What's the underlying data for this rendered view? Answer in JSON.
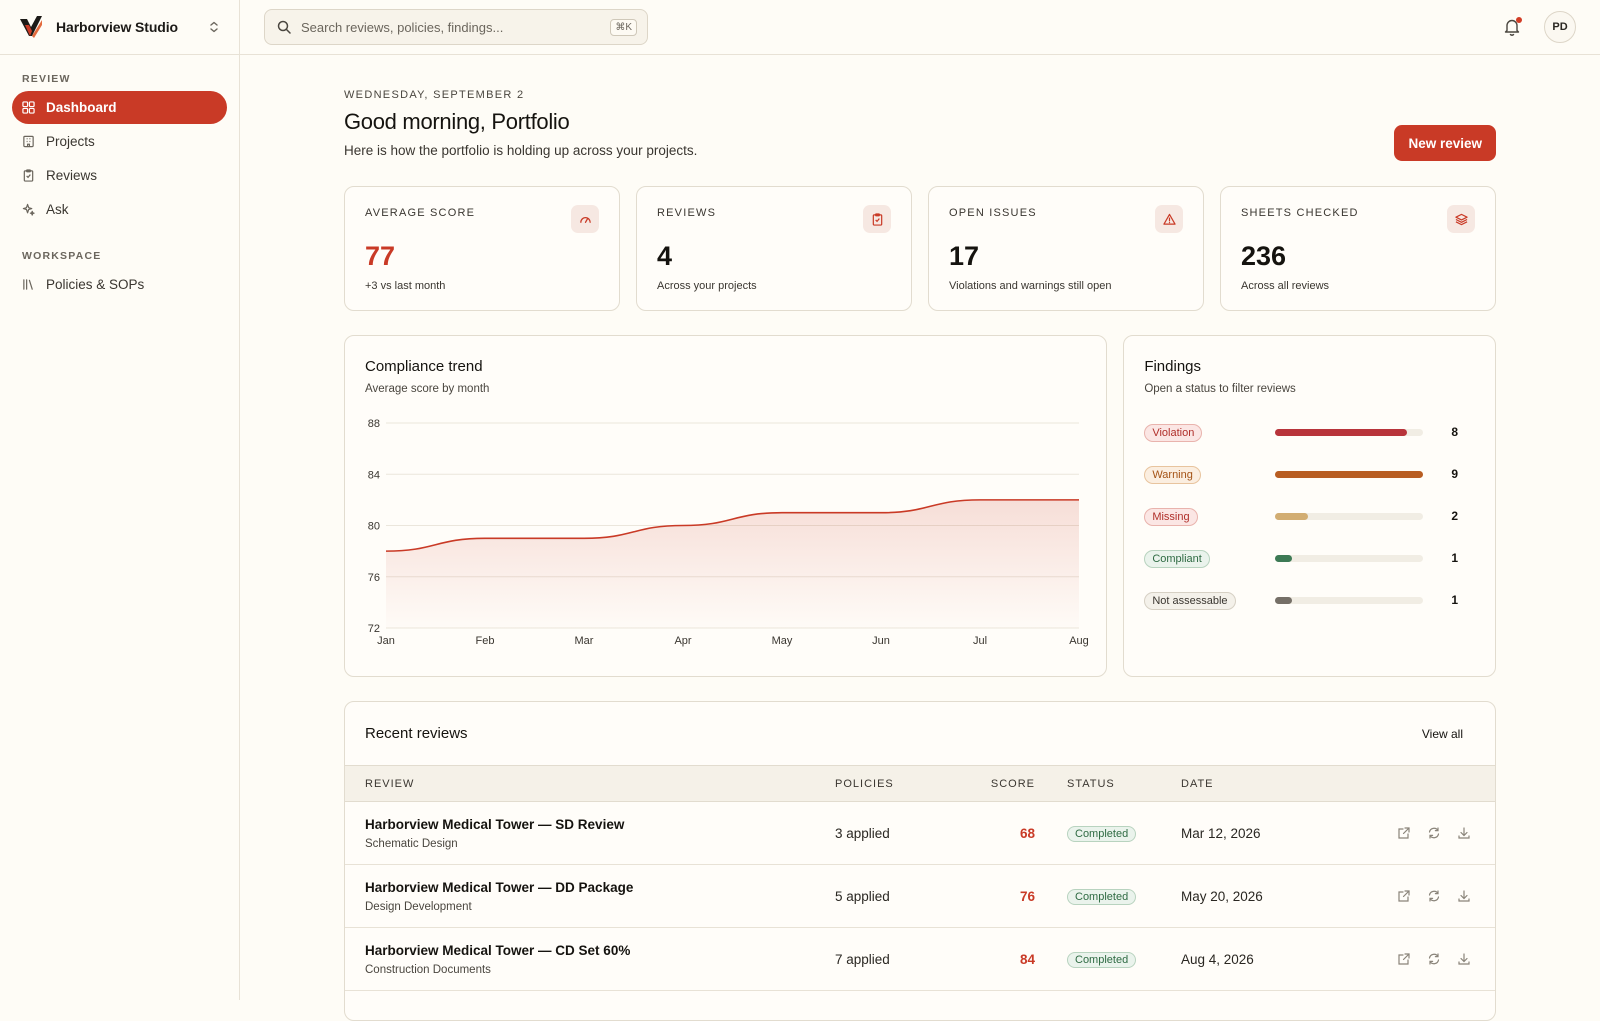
{
  "brand": {
    "name": "Harborview Studio"
  },
  "sidebar": {
    "sections": [
      {
        "label": "REVIEW"
      },
      {
        "label": "WORKSPACE"
      }
    ],
    "items": [
      {
        "label": "Dashboard",
        "icon": "grid-icon"
      },
      {
        "label": "Projects",
        "icon": "building-icon"
      },
      {
        "label": "Reviews",
        "icon": "clipboard-icon"
      },
      {
        "label": "Ask",
        "icon": "sparkle-icon"
      },
      {
        "label": "Policies & SOPs",
        "icon": "library-icon"
      }
    ]
  },
  "search": {
    "placeholder": "Search reviews, policies, findings...",
    "shortcut": "⌘K"
  },
  "user": {
    "initials": "PD"
  },
  "header": {
    "date": "WEDNESDAY, SEPTEMBER 2",
    "greeting": "Good morning, Portfolio",
    "subtitle": "Here is how the portfolio is holding up across your projects.",
    "new_review_label": "New review"
  },
  "stats": [
    {
      "label": "AVERAGE SCORE",
      "value": "77",
      "note": "+3 vs last month",
      "icon": "gauge-icon"
    },
    {
      "label": "REVIEWS",
      "value": "4",
      "note": "Across your projects",
      "icon": "clipboard-icon"
    },
    {
      "label": "OPEN ISSUES",
      "value": "17",
      "note": "Violations and warnings still open",
      "icon": "alert-icon"
    },
    {
      "label": "SHEETS CHECKED",
      "value": "236",
      "note": "Across all reviews",
      "icon": "layers-icon"
    }
  ],
  "trend": {
    "title": "Compliance trend",
    "subtitle": "Average score by month"
  },
  "chart_data": {
    "type": "area",
    "title": "Compliance trend",
    "subtitle": "Average score by month",
    "categories": [
      "Jan",
      "Feb",
      "Mar",
      "Apr",
      "May",
      "Jun",
      "Jul",
      "Aug"
    ],
    "values": [
      78,
      79,
      79,
      80,
      81,
      81,
      82,
      82
    ],
    "yticks": [
      88,
      84,
      80,
      76,
      72
    ],
    "ylim": [
      72,
      88
    ],
    "grid": true,
    "color": "#c93a26"
  },
  "findings": {
    "title": "Findings",
    "subtitle": "Open a status to filter reviews",
    "max": 9,
    "items": [
      {
        "label": "Violation",
        "count": 8,
        "bar": "#b8343b",
        "badge_bg": "#fbe6e4",
        "badge_border": "#e9b3ad",
        "badge_text": "#b02f2a"
      },
      {
        "label": "Warning",
        "count": 9,
        "bar": "#b85d22",
        "badge_bg": "#fbeee0",
        "badge_border": "#e8c49e",
        "badge_text": "#a45316"
      },
      {
        "label": "Missing",
        "count": 2,
        "bar": "#d2ad72",
        "badge_bg": "#fbe6e4",
        "badge_border": "#e9b3ad",
        "badge_text": "#b02f2a"
      },
      {
        "label": "Compliant",
        "count": 1,
        "bar": "#3d7a55",
        "badge_bg": "#eaf3ec",
        "badge_border": "#b8d3bf",
        "badge_text": "#2f6b43"
      },
      {
        "label": "Not assessable",
        "count": 1,
        "bar": "#756f67",
        "badge_bg": "#f4f1ea",
        "badge_border": "#d6d0c4",
        "badge_text": "#3a3630"
      }
    ]
  },
  "recent": {
    "title": "Recent reviews",
    "view_all": "View all",
    "columns": [
      "REVIEW",
      "POLICIES",
      "SCORE",
      "STATUS",
      "DATE"
    ],
    "rows": [
      {
        "name": "Harborview Medical Tower — SD Review",
        "phase": "Schematic Design",
        "policies": "3 applied",
        "score": "68",
        "status": "Completed",
        "date": "Mar 12, 2026"
      },
      {
        "name": "Harborview Medical Tower — DD Package",
        "phase": "Design Development",
        "policies": "5 applied",
        "score": "76",
        "status": "Completed",
        "date": "May 20, 2026"
      },
      {
        "name": "Harborview Medical Tower — CD Set 60%",
        "phase": "Construction Documents",
        "policies": "7 applied",
        "score": "84",
        "status": "Completed",
        "date": "Aug 4, 2026"
      }
    ]
  }
}
